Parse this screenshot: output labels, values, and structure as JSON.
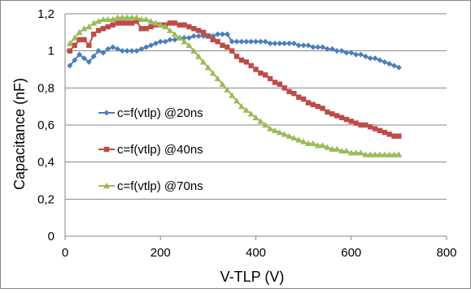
{
  "chart_data": {
    "type": "line",
    "title": "",
    "xlabel": "V-TLP (V)",
    "ylabel": "Capacitance (nF)",
    "xlim": [
      0,
      800
    ],
    "ylim": [
      0,
      1.2
    ],
    "x_ticks": [
      "0",
      "200",
      "400",
      "600",
      "800"
    ],
    "y_ticks": [
      "0",
      "0,2",
      "0,4",
      "0,6",
      "0,8",
      "1",
      "1,2"
    ],
    "grid": "horizontal",
    "legend_position": "left-middle",
    "series": [
      {
        "name": "c=f(vtlp) @20ns",
        "color": "#4a7ebb",
        "marker": "diamond",
        "x": [
          10,
          20,
          30,
          40,
          50,
          60,
          70,
          80,
          90,
          100,
          110,
          120,
          130,
          140,
          150,
          160,
          170,
          180,
          190,
          200,
          210,
          220,
          230,
          240,
          250,
          260,
          270,
          280,
          290,
          300,
          310,
          320,
          330,
          340,
          350,
          360,
          370,
          380,
          390,
          400,
          410,
          420,
          430,
          440,
          450,
          460,
          470,
          480,
          490,
          500,
          510,
          520,
          530,
          540,
          550,
          560,
          570,
          580,
          590,
          600,
          610,
          620,
          630,
          640,
          650,
          660,
          670,
          680,
          690,
          700
        ],
        "y": [
          0.92,
          0.95,
          0.98,
          0.96,
          0.94,
          0.97,
          1.0,
          0.99,
          1.01,
          1.02,
          1.01,
          1.0,
          1.0,
          1.0,
          1.0,
          1.01,
          1.02,
          1.03,
          1.04,
          1.05,
          1.05,
          1.06,
          1.06,
          1.07,
          1.07,
          1.07,
          1.08,
          1.08,
          1.08,
          1.08,
          1.08,
          1.09,
          1.09,
          1.09,
          1.05,
          1.05,
          1.05,
          1.05,
          1.05,
          1.05,
          1.05,
          1.05,
          1.04,
          1.04,
          1.04,
          1.04,
          1.04,
          1.04,
          1.03,
          1.03,
          1.03,
          1.02,
          1.02,
          1.02,
          1.01,
          1.01,
          1.0,
          1.0,
          0.99,
          0.99,
          0.98,
          0.98,
          0.97,
          0.96,
          0.96,
          0.95,
          0.94,
          0.93,
          0.92,
          0.91
        ]
      },
      {
        "name": "c=f(vtlp) @40ns",
        "color": "#be4b48",
        "marker": "square",
        "x": [
          10,
          20,
          30,
          40,
          50,
          60,
          70,
          80,
          90,
          100,
          110,
          120,
          130,
          140,
          150,
          160,
          170,
          180,
          190,
          200,
          210,
          220,
          230,
          240,
          250,
          260,
          270,
          280,
          290,
          300,
          310,
          320,
          330,
          340,
          350,
          360,
          370,
          380,
          390,
          400,
          410,
          420,
          430,
          440,
          450,
          460,
          470,
          480,
          490,
          500,
          510,
          520,
          530,
          540,
          550,
          560,
          570,
          580,
          590,
          600,
          610,
          620,
          630,
          640,
          650,
          660,
          670,
          680,
          690,
          700
        ],
        "y": [
          1.0,
          1.03,
          1.06,
          1.06,
          1.03,
          1.09,
          1.11,
          1.12,
          1.13,
          1.14,
          1.15,
          1.15,
          1.15,
          1.15,
          1.16,
          1.12,
          1.12,
          1.13,
          1.14,
          1.14,
          1.14,
          1.15,
          1.15,
          1.14,
          1.14,
          1.13,
          1.12,
          1.11,
          1.1,
          1.08,
          1.06,
          1.05,
          1.03,
          1.02,
          1.0,
          0.97,
          0.95,
          0.94,
          0.92,
          0.9,
          0.88,
          0.87,
          0.85,
          0.83,
          0.82,
          0.8,
          0.78,
          0.77,
          0.75,
          0.74,
          0.72,
          0.71,
          0.7,
          0.69,
          0.67,
          0.66,
          0.65,
          0.64,
          0.63,
          0.62,
          0.61,
          0.6,
          0.6,
          0.59,
          0.58,
          0.57,
          0.56,
          0.55,
          0.54,
          0.54
        ]
      },
      {
        "name": "c=f(vtlp) @70ns",
        "color": "#9bbb59",
        "marker": "triangle",
        "x": [
          10,
          20,
          30,
          40,
          50,
          60,
          70,
          80,
          90,
          100,
          110,
          120,
          130,
          140,
          150,
          160,
          170,
          180,
          190,
          200,
          210,
          220,
          230,
          240,
          250,
          260,
          270,
          280,
          290,
          300,
          310,
          320,
          330,
          340,
          350,
          360,
          370,
          380,
          390,
          400,
          410,
          420,
          430,
          440,
          450,
          460,
          470,
          480,
          490,
          500,
          510,
          520,
          530,
          540,
          550,
          560,
          570,
          580,
          590,
          600,
          610,
          620,
          630,
          640,
          650,
          660,
          670,
          680,
          690,
          700
        ],
        "y": [
          1.04,
          1.07,
          1.1,
          1.12,
          1.13,
          1.15,
          1.16,
          1.17,
          1.17,
          1.17,
          1.18,
          1.18,
          1.18,
          1.18,
          1.18,
          1.17,
          1.17,
          1.16,
          1.15,
          1.14,
          1.13,
          1.11,
          1.09,
          1.07,
          1.05,
          1.03,
          1.0,
          0.97,
          0.94,
          0.91,
          0.88,
          0.85,
          0.82,
          0.79,
          0.76,
          0.73,
          0.7,
          0.68,
          0.66,
          0.64,
          0.62,
          0.6,
          0.58,
          0.57,
          0.56,
          0.55,
          0.54,
          0.53,
          0.52,
          0.51,
          0.5,
          0.5,
          0.49,
          0.49,
          0.48,
          0.47,
          0.47,
          0.46,
          0.46,
          0.45,
          0.45,
          0.45,
          0.44,
          0.44,
          0.44,
          0.44,
          0.44,
          0.44,
          0.44,
          0.44
        ]
      }
    ]
  }
}
